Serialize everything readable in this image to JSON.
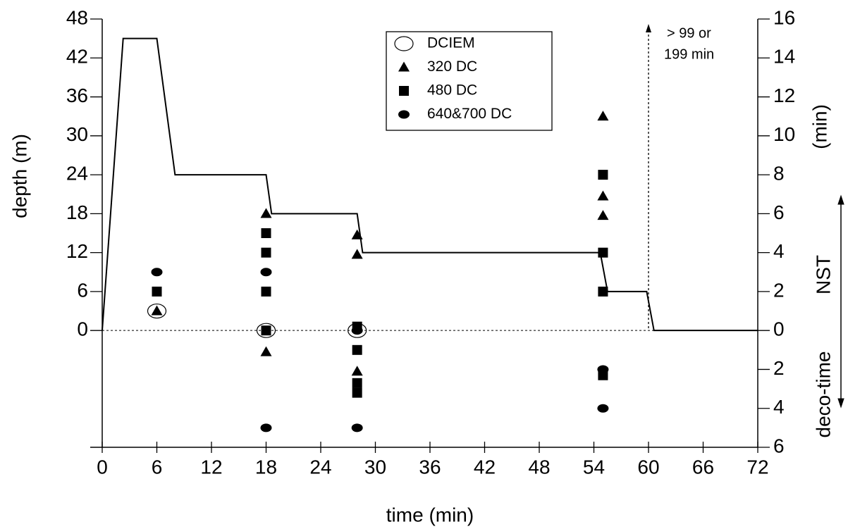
{
  "chart_data": {
    "type": "line",
    "x_label": "time (min)",
    "y_label": "depth (m)",
    "y2_labels": [
      "(min)",
      "NST",
      "deco-time"
    ],
    "annotation": [
      "> 99 or",
      "199 min"
    ],
    "xlim": [
      0,
      72
    ],
    "xticks": [
      0,
      6,
      12,
      18,
      24,
      30,
      36,
      42,
      48,
      54,
      60,
      66,
      72
    ],
    "ylim": [
      -18,
      48
    ],
    "yticks": [
      0,
      6,
      12,
      18,
      24,
      30,
      36,
      42,
      48
    ],
    "y2lim": [
      -6,
      16
    ],
    "y2ticks": [
      16,
      14,
      12,
      10,
      8,
      6,
      4,
      2,
      0,
      {
        "value": -2,
        "label": "2"
      },
      {
        "value": -4,
        "label": "4"
      },
      {
        "value": -6,
        "label": "6"
      }
    ],
    "zero_line": true,
    "series": [
      {
        "type": "line",
        "color": "#000",
        "x": [
          0,
          2.3,
          6,
          8,
          18,
          18.6,
          28,
          28.6,
          54.7,
          55.5,
          59.8,
          60.6,
          72
        ],
        "values": [
          0,
          45,
          45,
          24,
          24,
          18,
          18,
          12,
          12,
          6,
          6,
          0,
          0
        ]
      },
      {
        "type": "scatter",
        "name": "DCIEM",
        "marker": "open-circle",
        "axis": "y2",
        "color": "#000",
        "x": [
          6,
          18,
          28
        ],
        "values": [
          1,
          0,
          0
        ]
      },
      {
        "type": "scatter",
        "name": "320 DC",
        "marker": "triangle",
        "axis": "y2",
        "color": "#000",
        "x": [
          6,
          18,
          18,
          28,
          28,
          28,
          55,
          55,
          55
        ],
        "values": [
          1,
          6,
          -1.1,
          4.9,
          3.9,
          -2.1,
          11,
          6.9,
          5.9
        ]
      },
      {
        "type": "scatter",
        "name": "480 DC",
        "marker": "square",
        "axis": "y2",
        "color": "#000",
        "x": [
          6,
          18,
          18,
          18,
          18,
          28,
          28,
          28,
          28,
          55,
          55,
          55,
          55
        ],
        "values": [
          2,
          5,
          4,
          2,
          0,
          0.2,
          -1,
          -2.7,
          -3.2,
          8,
          4,
          2,
          -2.3
        ]
      },
      {
        "type": "scatter",
        "name": "640&700 DC",
        "marker": "ellipse",
        "axis": "y2",
        "color": "#000",
        "x": [
          6,
          18,
          18,
          28,
          28,
          55,
          55
        ],
        "values": [
          3,
          3,
          -5,
          0,
          -5,
          -2,
          -4
        ]
      }
    ]
  }
}
